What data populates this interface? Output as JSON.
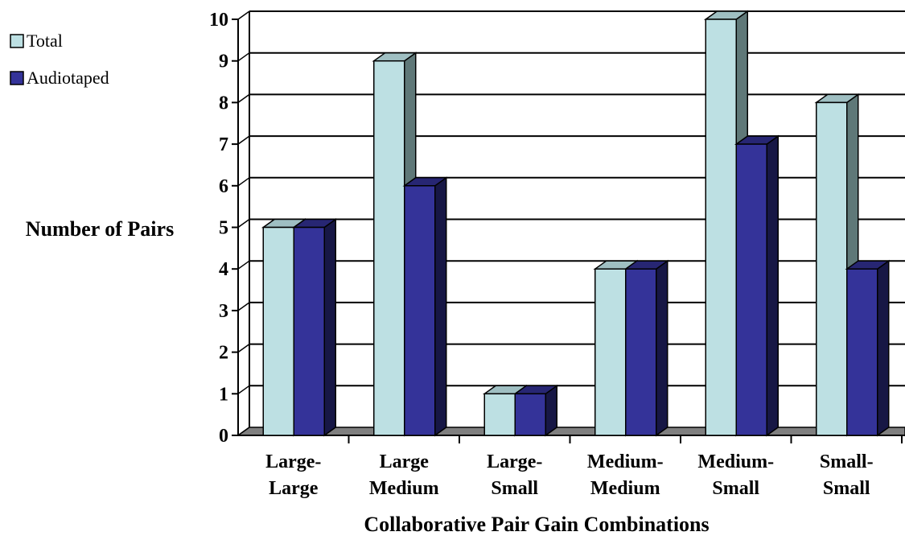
{
  "chart_data": {
    "type": "bar",
    "three_d": true,
    "categories": [
      [
        "Large-",
        "Large"
      ],
      [
        "Large",
        "Medium"
      ],
      [
        "Large-",
        "Small"
      ],
      [
        "Medium-",
        "Medium"
      ],
      [
        "Medium-",
        "Small"
      ],
      [
        "Small-",
        "Small"
      ]
    ],
    "series": [
      {
        "name": "Total",
        "values": [
          5,
          9,
          1,
          4,
          10,
          8
        ],
        "color": "#bde0e3"
      },
      {
        "name": "Audiotaped",
        "values": [
          5,
          6,
          1,
          4,
          7,
          4
        ],
        "color": "#343399"
      }
    ],
    "xlabel": "Collaborative Pair Gain Combinations",
    "ylabel": "Number of Pairs",
    "ylim": [
      0,
      10
    ],
    "yticks": [
      "0",
      "1",
      "2",
      "3",
      "4",
      "5",
      "6",
      "7",
      "8",
      "9",
      "10"
    ],
    "grid": true,
    "legend_position": "top-left"
  }
}
